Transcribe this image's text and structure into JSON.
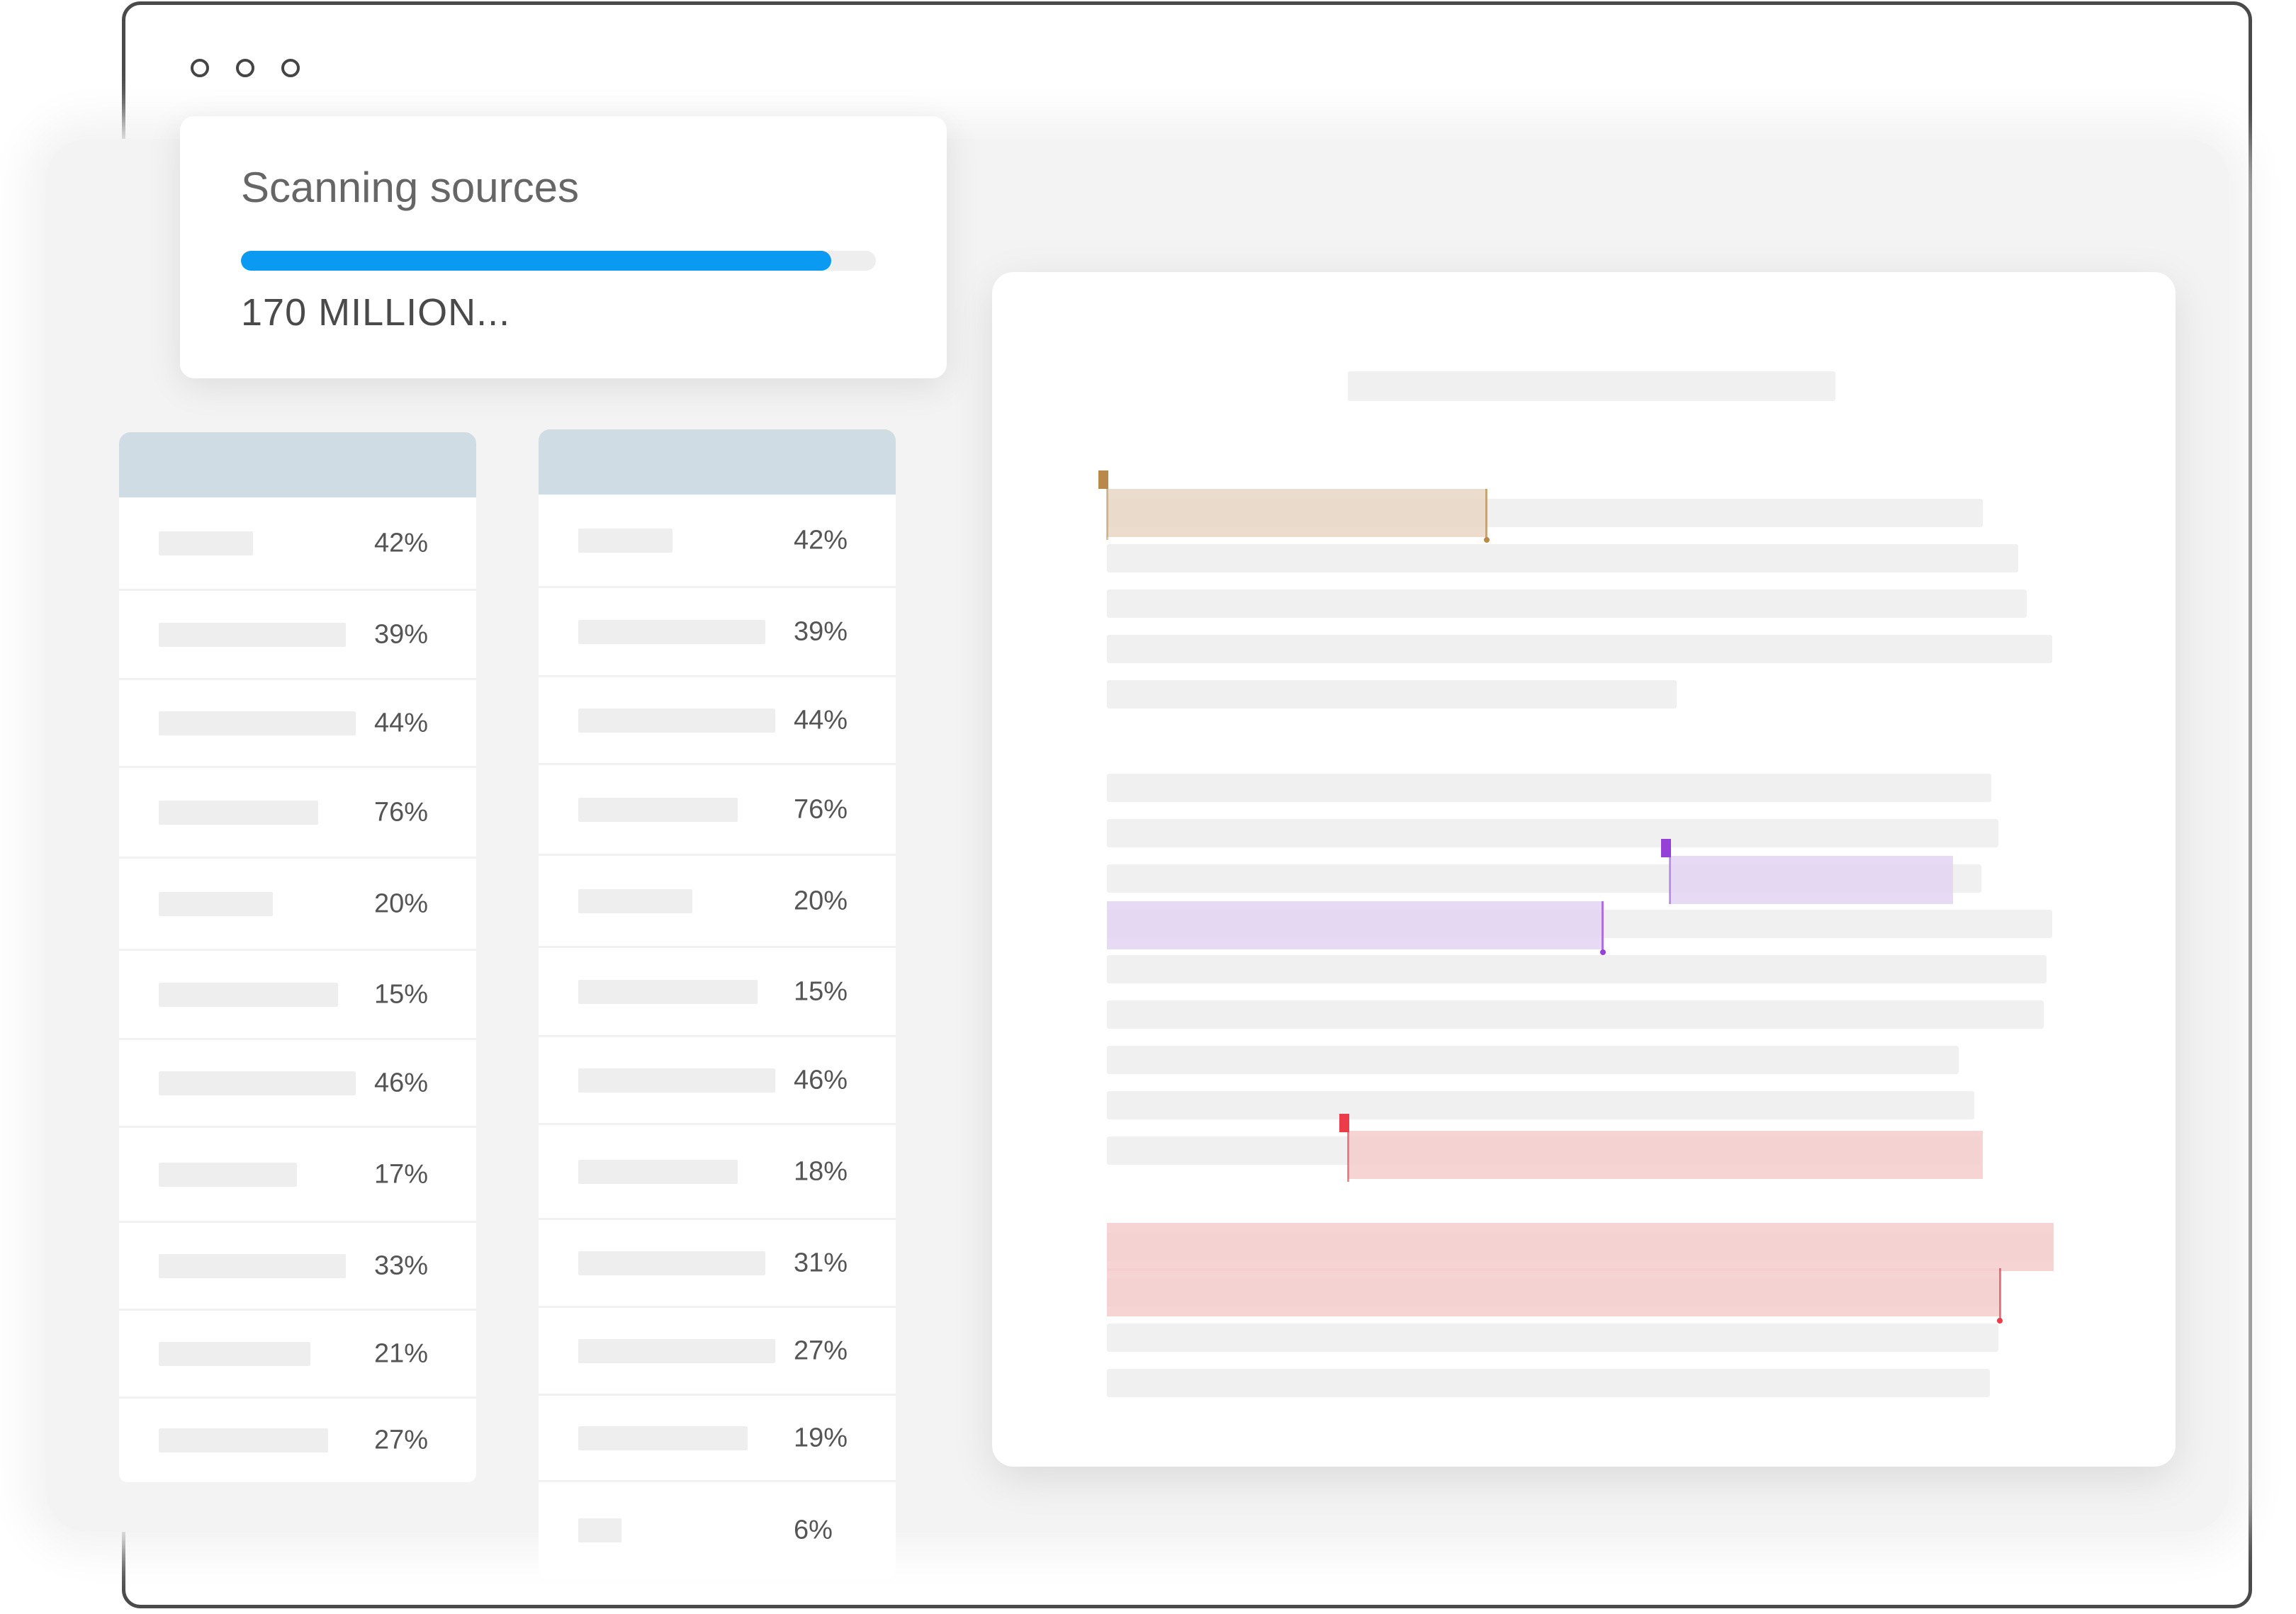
{
  "window": {
    "controls": [
      "circle-icon",
      "circle-icon",
      "circle-icon"
    ]
  },
  "scan_card": {
    "title": "Scanning sources",
    "count_text": "170 MILLION...",
    "progress_fraction": 0.93,
    "progress_color": "#0a9af2"
  },
  "tables": [
    {
      "rows": [
        {
          "pct": "42%",
          "bar_fraction": 0.48
        },
        {
          "pct": "39%",
          "bar_fraction": 0.95
        },
        {
          "pct": "44%",
          "bar_fraction": 1.0
        },
        {
          "pct": "76%",
          "bar_fraction": 0.81
        },
        {
          "pct": "20%",
          "bar_fraction": 0.58
        },
        {
          "pct": "15%",
          "bar_fraction": 0.91
        },
        {
          "pct": "46%",
          "bar_fraction": 1.0
        },
        {
          "pct": "17%",
          "bar_fraction": 0.7
        },
        {
          "pct": "33%",
          "bar_fraction": 0.95
        },
        {
          "pct": "21%",
          "bar_fraction": 0.77
        },
        {
          "pct": "27%",
          "bar_fraction": 0.86
        }
      ]
    },
    {
      "rows": [
        {
          "pct": "42%",
          "bar_fraction": 0.48
        },
        {
          "pct": "39%",
          "bar_fraction": 0.95
        },
        {
          "pct": "44%",
          "bar_fraction": 1.0
        },
        {
          "pct": "76%",
          "bar_fraction": 0.81
        },
        {
          "pct": "20%",
          "bar_fraction": 0.58
        },
        {
          "pct": "15%",
          "bar_fraction": 0.91
        },
        {
          "pct": "46%",
          "bar_fraction": 1.0
        },
        {
          "pct": "18%",
          "bar_fraction": 0.81
        },
        {
          "pct": "31%",
          "bar_fraction": 0.95
        },
        {
          "pct": "27%",
          "bar_fraction": 1.0
        },
        {
          "pct": "19%",
          "bar_fraction": 0.86
        },
        {
          "pct": "6%",
          "bar_fraction": 0.22
        }
      ]
    }
  ],
  "document": {
    "highlight_colors": {
      "tan": "#e7d6c4",
      "tan_marker": "#b8894a",
      "purple": "#e3d3f3",
      "purple_marker": "#9540d6",
      "red": "#f6cccc",
      "red_marker": "#ec3c4a"
    }
  }
}
